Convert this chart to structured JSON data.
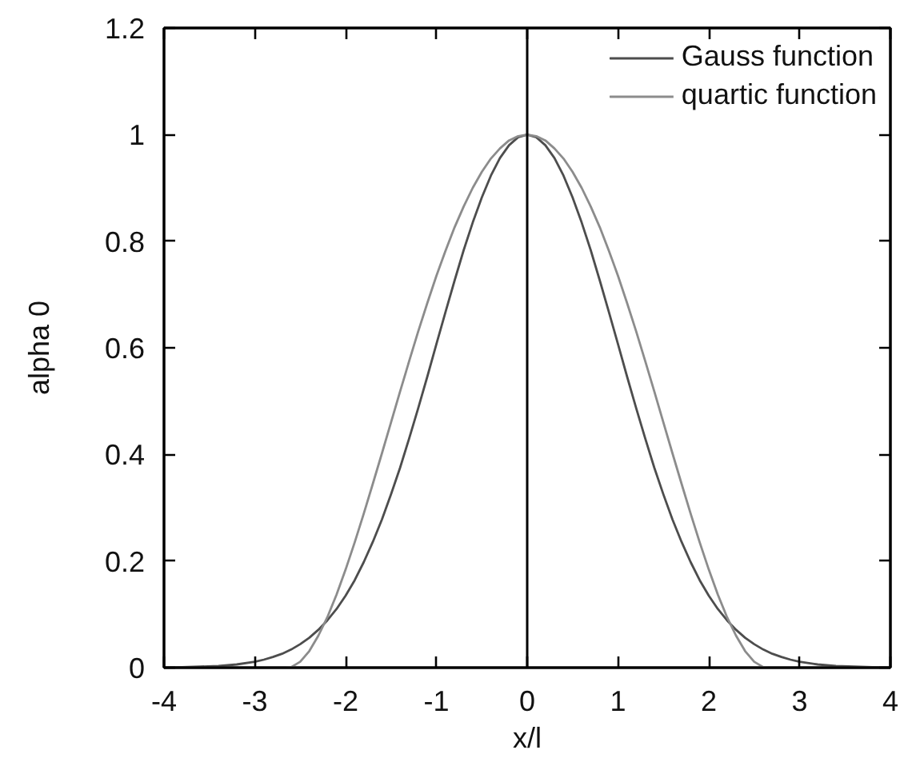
{
  "chart_data": {
    "type": "line",
    "xlabel": "x/l",
    "ylabel": "alpha 0",
    "xlim": [
      -4,
      4
    ],
    "ylim": [
      0,
      1.2
    ],
    "xticks": [
      -4,
      -3,
      -2,
      -1,
      0,
      1,
      2,
      3,
      4
    ],
    "yticks": [
      0,
      0.2,
      0.4,
      0.6,
      0.8,
      1,
      1.2
    ],
    "grid": false,
    "legend": "top right",
    "marker": "none",
    "line_style": "solid",
    "ref_lines": [
      {
        "axis": "x",
        "value": 0,
        "color": "#000000"
      }
    ],
    "series": [
      {
        "name": "Gauss function",
        "color": "#4d4d4d",
        "x": [
          -4,
          -3.8,
          -3.6,
          -3.4,
          -3.2,
          -3,
          -2.9,
          -2.8,
          -2.7,
          -2.6,
          -2.5,
          -2.4,
          -2.3,
          -2.2,
          -2.1,
          -2,
          -1.9,
          -1.8,
          -1.7,
          -1.6,
          -1.5,
          -1.4,
          -1.3,
          -1.2,
          -1.1,
          -1,
          -0.9,
          -0.8,
          -0.7,
          -0.6,
          -0.5,
          -0.4,
          -0.3,
          -0.2,
          -0.1,
          0,
          0.1,
          0.2,
          0.3,
          0.4,
          0.5,
          0.6,
          0.7,
          0.8,
          0.9,
          1,
          1.1,
          1.2,
          1.3,
          1.4,
          1.5,
          1.6,
          1.7,
          1.8,
          1.9,
          2,
          2.1,
          2.2,
          2.3,
          2.4,
          2.5,
          2.6,
          2.7,
          2.8,
          2.9,
          3,
          3.2,
          3.4,
          3.6,
          3.8,
          4
        ],
        "values": [
          0,
          0.001,
          0.002,
          0.003,
          0.006,
          0.011,
          0.015,
          0.02,
          0.026,
          0.034,
          0.044,
          0.056,
          0.071,
          0.089,
          0.11,
          0.135,
          0.164,
          0.198,
          0.236,
          0.278,
          0.325,
          0.375,
          0.43,
          0.487,
          0.546,
          0.607,
          0.667,
          0.726,
          0.783,
          0.835,
          0.882,
          0.923,
          0.956,
          0.98,
          0.995,
          1,
          0.995,
          0.98,
          0.956,
          0.923,
          0.882,
          0.835,
          0.783,
          0.726,
          0.667,
          0.607,
          0.546,
          0.487,
          0.43,
          0.375,
          0.325,
          0.278,
          0.236,
          0.198,
          0.164,
          0.135,
          0.11,
          0.089,
          0.071,
          0.056,
          0.044,
          0.034,
          0.026,
          0.02,
          0.015,
          0.011,
          0.006,
          0.003,
          0.002,
          0.001,
          0
        ]
      },
      {
        "name": "quartic function",
        "color": "#8c8c8c",
        "x": [
          -2.65,
          -2.6,
          -2.5,
          -2.4,
          -2.3,
          -2.2,
          -2.1,
          -2,
          -1.9,
          -1.8,
          -1.7,
          -1.6,
          -1.5,
          -1.4,
          -1.3,
          -1.2,
          -1.1,
          -1,
          -0.9,
          -0.8,
          -0.7,
          -0.6,
          -0.5,
          -0.4,
          -0.3,
          -0.2,
          -0.1,
          0,
          0.1,
          0.2,
          0.3,
          0.4,
          0.5,
          0.6,
          0.7,
          0.8,
          0.9,
          1,
          1.1,
          1.2,
          1.3,
          1.4,
          1.5,
          1.6,
          1.7,
          1.8,
          1.9,
          2,
          2.1,
          2.2,
          2.3,
          2.4,
          2.5,
          2.6,
          2.65
        ],
        "values": [
          0,
          0.001,
          0.011,
          0.031,
          0.06,
          0.095,
          0.137,
          0.184,
          0.235,
          0.289,
          0.345,
          0.402,
          0.46,
          0.518,
          0.575,
          0.631,
          0.684,
          0.735,
          0.782,
          0.826,
          0.865,
          0.9,
          0.93,
          0.955,
          0.974,
          0.989,
          0.997,
          1,
          0.997,
          0.989,
          0.974,
          0.955,
          0.93,
          0.9,
          0.865,
          0.826,
          0.782,
          0.735,
          0.684,
          0.631,
          0.575,
          0.518,
          0.46,
          0.402,
          0.345,
          0.289,
          0.235,
          0.184,
          0.137,
          0.095,
          0.06,
          0.031,
          0.011,
          0.001,
          0
        ]
      }
    ]
  }
}
